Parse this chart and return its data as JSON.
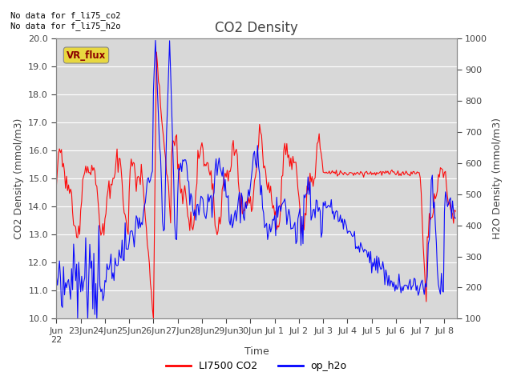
{
  "title": "CO2 Density",
  "xlabel": "Time",
  "ylabel_left": "CO2 Density (mmol/m3)",
  "ylabel_right": "H2O Density (mmol/m3)",
  "annotation_text": "No data for f_li75_co2\nNo data for f_li75_h2o",
  "vr_flux_label": "VR_flux",
  "legend_co2": "LI7500 CO2",
  "legend_h2o": "op_h2o",
  "co2_color": "red",
  "h2o_color": "blue",
  "ylim_left": [
    10.0,
    20.0
  ],
  "ylim_right": [
    100,
    1000
  ],
  "plot_bg_color": "#d8d8d8",
  "grid_color": "white",
  "tick_label_color": "#444444",
  "title_color": "#444444",
  "axis_label_color": "#444444",
  "yticks_left": [
    10.0,
    11.0,
    12.0,
    13.0,
    14.0,
    15.0,
    16.0,
    17.0,
    18.0,
    19.0,
    20.0
  ],
  "yticks_right": [
    100,
    200,
    300,
    400,
    500,
    600,
    700,
    800,
    900,
    1000
  ],
  "xtick_labels": [
    "Jun",
    "23Jun",
    "24Jun",
    "25Jun",
    "26Jun",
    "27Jun",
    "28Jun",
    "29Jun",
    "30",
    "Jul 1",
    "Jul 2",
    "Jul 3",
    "Jul 4",
    "Jul 5",
    "Jul 6",
    "Jul 7",
    "Jul 8"
  ],
  "figsize": [
    6.4,
    4.8
  ],
  "dpi": 100
}
